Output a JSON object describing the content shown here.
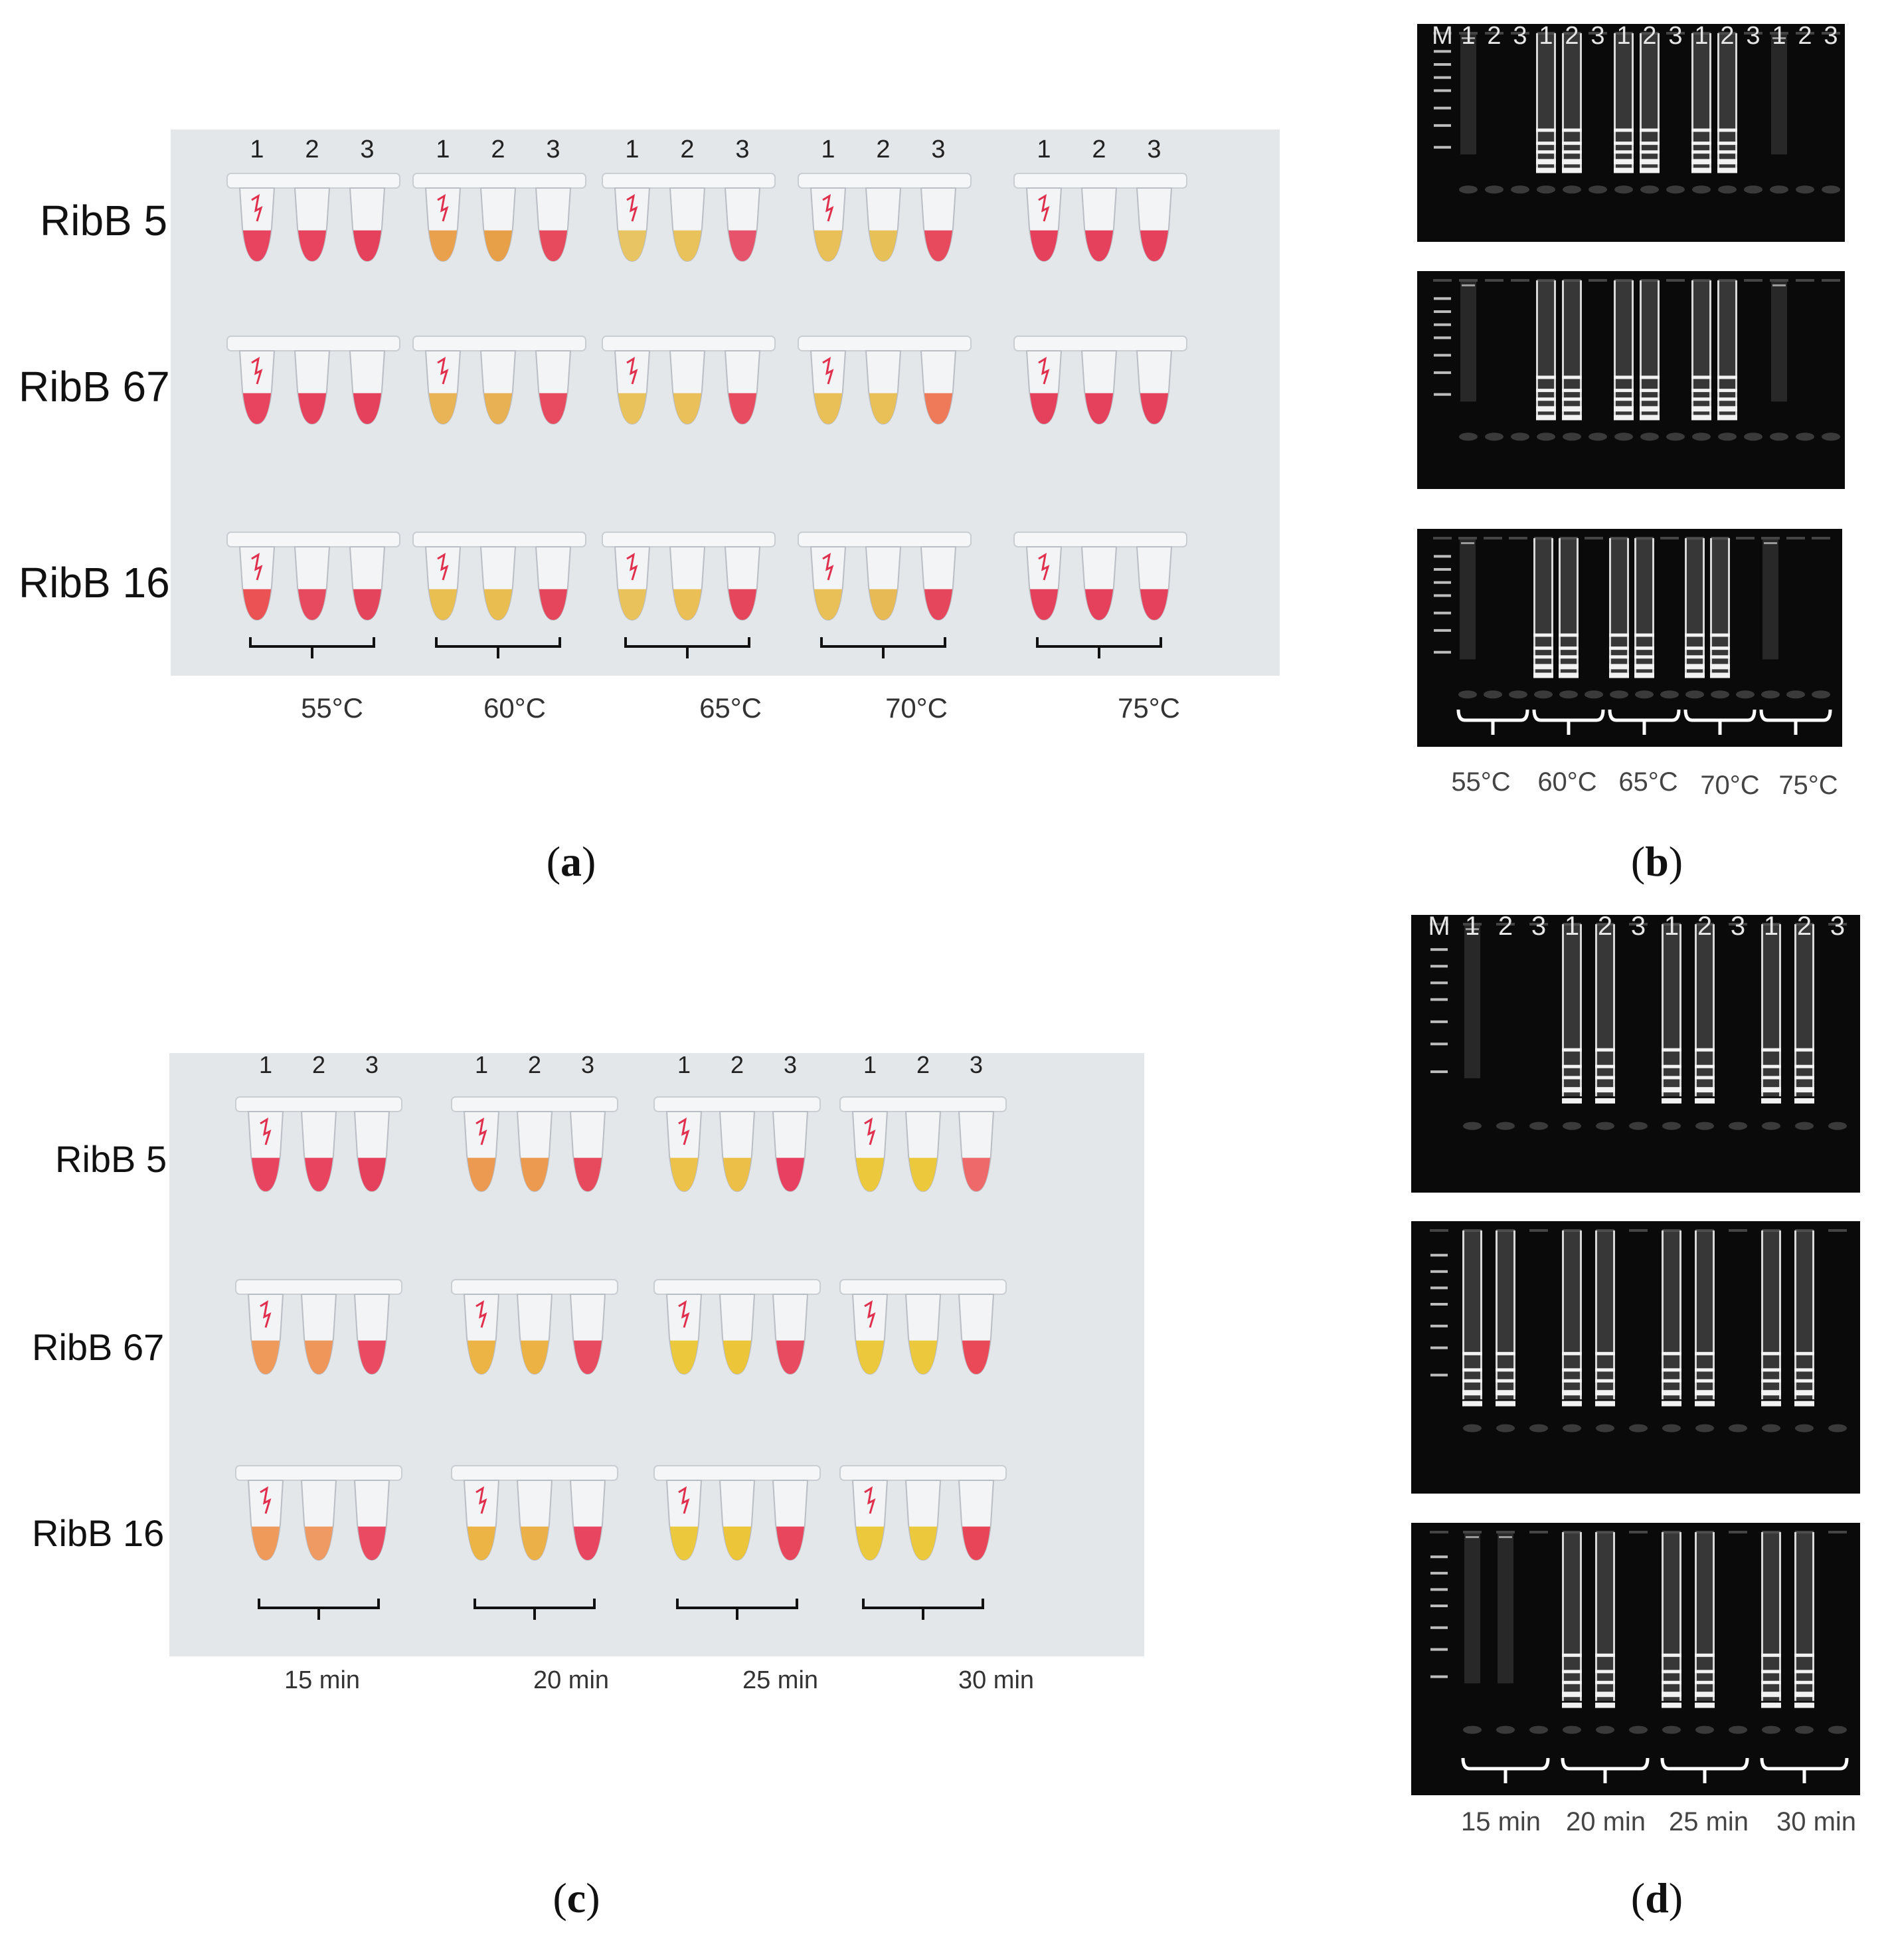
{
  "panels": {
    "a": {
      "label": "a",
      "rows": [
        "RibB 5",
        "RibB 67",
        "RibB 16"
      ],
      "lane_numbers": [
        "1",
        "2",
        "3"
      ],
      "conditions": [
        "55°C",
        "60°C",
        "65°C",
        "70°C",
        "75°C"
      ],
      "tube_colors": [
        [
          [
            "#e8445f",
            "#e8445f",
            "#e5405c"
          ],
          [
            "#e9a14e",
            "#e8a048",
            "#e64a5c"
          ],
          [
            "#e9c462",
            "#e9c25c",
            "#e7536a"
          ],
          [
            "#e9c058",
            "#e8c058",
            "#e64a5c"
          ],
          [
            "#e5405c",
            "#e5405c",
            "#e5405c"
          ]
        ],
        [
          [
            "#e8445f",
            "#e6425d",
            "#e5405c"
          ],
          [
            "#e8b456",
            "#e8b254",
            "#e84a60"
          ],
          [
            "#e9c25c",
            "#e9c05a",
            "#e84c60"
          ],
          [
            "#e9c058",
            "#e9c058",
            "#ee7a5a"
          ],
          [
            "#e5405c",
            "#e5405c",
            "#e5405c"
          ]
        ],
        [
          [
            "#ea5254",
            "#e74a5e",
            "#e5455c"
          ],
          [
            "#e9bf52",
            "#e9bd50",
            "#e5465c"
          ],
          [
            "#e9c25c",
            "#e9bf56",
            "#e5465c"
          ],
          [
            "#e9c058",
            "#e8ba56",
            "#e5465c"
          ],
          [
            "#e5405c",
            "#e5405c",
            "#e5405c"
          ]
        ]
      ]
    },
    "b": {
      "label": "b",
      "lane_header": [
        "M",
        "1",
        "2",
        "3",
        "1",
        "2",
        "3",
        "1",
        "2",
        "3",
        "1",
        "2",
        "3",
        "1",
        "2",
        "3"
      ],
      "conditions": [
        "55°C",
        "60°C",
        "65°C",
        "70°C",
        "75°C"
      ]
    },
    "c": {
      "label": "c",
      "rows": [
        "RibB 5",
        "RibB 67",
        "RibB 16"
      ],
      "lane_numbers": [
        "1",
        "2",
        "3"
      ],
      "conditions": [
        "15 min",
        "20 min",
        "25 min",
        "30 min"
      ],
      "tube_colors": [
        [
          [
            "#e8445f",
            "#e8445f",
            "#e5405c"
          ],
          [
            "#ec9a52",
            "#eb9a50",
            "#e64a5c"
          ],
          [
            "#ecc24a",
            "#ecc048",
            "#e84060"
          ],
          [
            "#ecc83c",
            "#ecc83c",
            "#ee6a6a"
          ]
        ],
        [
          [
            "#ef9a5a",
            "#ef965a",
            "#ea4a62"
          ],
          [
            "#ecb444",
            "#ecb244",
            "#e84a60"
          ],
          [
            "#ecc83c",
            "#ecc638",
            "#e84a60"
          ],
          [
            "#ecc83c",
            "#ecc83c",
            "#ea4a58"
          ]
        ],
        [
          [
            "#ef9a5a",
            "#ef9a62",
            "#ea4a62"
          ],
          [
            "#ecb444",
            "#ecb048",
            "#e84660"
          ],
          [
            "#ecc83c",
            "#ecc638",
            "#e8465c"
          ],
          [
            "#ecc83c",
            "#ecc83c",
            "#e84658"
          ]
        ]
      ]
    },
    "d": {
      "label": "d",
      "lane_header": [
        "M",
        "1",
        "2",
        "3",
        "1",
        "2",
        "3",
        "1",
        "2",
        "3",
        "1",
        "2",
        "3"
      ],
      "conditions": [
        "15 min",
        "20 min",
        "25 min",
        "30 min"
      ]
    }
  }
}
